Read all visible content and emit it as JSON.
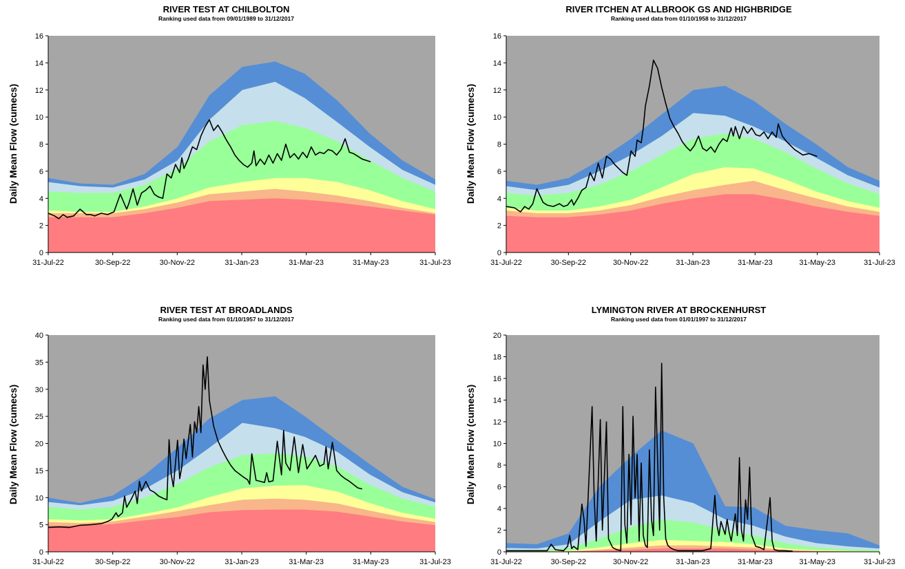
{
  "colors": {
    "background": "#a6a6a6",
    "band_1": "#ff7c80",
    "band_2": "#f8b68a",
    "band_3": "#ffff99",
    "band_4": "#99ff99",
    "band_5": "#c5e0ec",
    "band_6": "#558ed5",
    "flow_line": "#000000"
  },
  "chart_data": [
    {
      "type": "area",
      "title": "RIVER TEST AT CHILBOLTON",
      "subtitle": "Ranking used data from 09/01/1989 to 31/12/2017",
      "ylabel": "Daily Mean Flow (cumecs)",
      "xlabel": "",
      "x_ticks": [
        "31-Jul-22",
        "30-Sep-22",
        "30-Nov-22",
        "31-Jan-23",
        "31-Mar-23",
        "31-May-23",
        "31-Jul-23"
      ],
      "ylim": [
        0,
        16
      ],
      "y_ticks": [
        "0",
        "2",
        "4",
        "6",
        "8",
        "10",
        "12",
        "14",
        "16"
      ],
      "x": [
        0,
        30,
        61,
        91,
        122,
        152,
        183,
        214,
        242,
        273,
        303,
        334,
        365
      ],
      "bands": [
        [
          2.6,
          2.6,
          2.6,
          2.9,
          3.3,
          3.8,
          3.9,
          4.0,
          3.9,
          3.7,
          3.4,
          3.1,
          2.8
        ],
        [
          2.9,
          2.9,
          2.9,
          3.2,
          3.7,
          4.3,
          4.5,
          4.7,
          4.5,
          4.2,
          3.8,
          3.3,
          2.9
        ],
        [
          3.1,
          3.0,
          3.0,
          3.4,
          4.0,
          4.8,
          5.2,
          5.5,
          5.5,
          5.2,
          4.6,
          3.8,
          3.2
        ],
        [
          4.5,
          4.4,
          4.4,
          5.0,
          6.2,
          8.2,
          9.4,
          9.7,
          9.2,
          8.2,
          6.8,
          5.5,
          4.5
        ],
        [
          5.2,
          4.9,
          4.8,
          5.4,
          6.8,
          9.8,
          12.0,
          12.6,
          11.4,
          9.6,
          7.8,
          6.1,
          5.0
        ],
        [
          5.5,
          5.1,
          5.0,
          5.8,
          7.8,
          11.6,
          13.7,
          14.1,
          13.2,
          11.2,
          8.8,
          6.8,
          5.4
        ]
      ],
      "flow": {
        "x": [
          0,
          6,
          10,
          14,
          18,
          24,
          30,
          36,
          40,
          44,
          50,
          56,
          62,
          68,
          74,
          76,
          80,
          84,
          88,
          92,
          96,
          100,
          104,
          108,
          112,
          116,
          120,
          124,
          126,
          128,
          132,
          136,
          140,
          144,
          148,
          152,
          156,
          160,
          164,
          168,
          172,
          176,
          180,
          184,
          188,
          192,
          194,
          196,
          200,
          204,
          208,
          212,
          216,
          220,
          224,
          228,
          232,
          236,
          240,
          244,
          248,
          252,
          256,
          260,
          264,
          268,
          272,
          276,
          280,
          284,
          288,
          292,
          296,
          300,
          304
        ],
        "y": [
          2.9,
          2.7,
          2.5,
          2.8,
          2.6,
          2.7,
          3.2,
          2.8,
          2.8,
          2.7,
          2.9,
          2.8,
          3.0,
          4.3,
          3.2,
          3.6,
          4.7,
          3.5,
          4.4,
          4.6,
          4.9,
          4.3,
          4.1,
          4.0,
          5.8,
          5.5,
          6.5,
          5.9,
          7.0,
          6.2,
          6.9,
          7.8,
          7.6,
          8.6,
          9.3,
          9.8,
          9.0,
          9.4,
          8.9,
          8.3,
          7.8,
          7.2,
          6.8,
          6.5,
          6.3,
          6.6,
          7.5,
          6.4,
          6.9,
          6.5,
          7.2,
          6.6,
          7.3,
          6.8,
          8.0,
          7.0,
          7.3,
          6.9,
          7.4,
          7.0,
          7.8,
          7.2,
          7.4,
          7.3,
          7.6,
          7.5,
          7.2,
          7.6,
          8.4,
          7.4,
          7.3,
          7.1,
          6.9,
          6.8,
          6.7
        ]
      }
    },
    {
      "type": "area",
      "title": "RIVER ITCHEN AT ALLBROOK GS AND HIGHBRIDGE",
      "subtitle": "Ranking used data from 01/10/1958 to 31/12/2017",
      "ylabel": "Daily Mean Flow (cumecs)",
      "xlabel": "",
      "x_ticks": [
        "31-Jul-22",
        "30-Sep-22",
        "30-Nov-22",
        "31-Jan-23",
        "31-Mar-23",
        "31-May-23",
        "31-Jul-23"
      ],
      "ylim": [
        0,
        16
      ],
      "y_ticks": [
        "0",
        "2",
        "4",
        "6",
        "8",
        "10",
        "12",
        "14",
        "16"
      ],
      "x": [
        0,
        30,
        61,
        91,
        122,
        152,
        183,
        214,
        242,
        273,
        303,
        334,
        365
      ],
      "bands": [
        [
          2.7,
          2.6,
          2.6,
          2.8,
          3.1,
          3.6,
          4.0,
          4.3,
          4.3,
          3.9,
          3.4,
          3.0,
          2.7
        ],
        [
          3.1,
          2.9,
          2.9,
          3.1,
          3.5,
          4.1,
          4.6,
          5.0,
          5.3,
          4.6,
          4.0,
          3.4,
          3.0
        ],
        [
          3.3,
          3.1,
          3.1,
          3.4,
          3.9,
          4.8,
          5.8,
          6.3,
          6.2,
          5.4,
          4.5,
          3.8,
          3.3
        ],
        [
          4.4,
          4.2,
          4.4,
          5.0,
          6.0,
          7.2,
          8.4,
          8.8,
          8.4,
          7.4,
          6.2,
          5.1,
          4.3
        ],
        [
          4.9,
          4.6,
          5.0,
          6.0,
          7.2,
          8.6,
          10.3,
          10.1,
          9.3,
          8.2,
          7.0,
          5.7,
          4.8
        ],
        [
          5.3,
          5.0,
          5.5,
          6.8,
          8.4,
          10.2,
          12.0,
          12.3,
          11.2,
          9.5,
          8.0,
          6.3,
          5.3
        ]
      ],
      "flow": {
        "x": [
          0,
          8,
          14,
          18,
          22,
          26,
          30,
          36,
          40,
          46,
          52,
          56,
          60,
          64,
          66,
          70,
          74,
          78,
          82,
          86,
          90,
          94,
          98,
          102,
          106,
          110,
          114,
          118,
          122,
          126,
          128,
          132,
          134,
          136,
          140,
          144,
          148,
          152,
          156,
          160,
          164,
          168,
          172,
          176,
          180,
          184,
          188,
          192,
          196,
          200,
          204,
          208,
          212,
          216,
          220,
          222,
          224,
          228,
          232,
          236,
          240,
          244,
          248,
          252,
          256,
          260,
          264,
          266,
          270,
          274,
          278,
          282,
          286,
          290,
          296,
          300,
          304
        ],
        "y": [
          3.4,
          3.3,
          3.0,
          3.4,
          3.2,
          3.6,
          4.7,
          3.7,
          3.5,
          3.4,
          3.6,
          3.4,
          3.5,
          3.9,
          3.5,
          4.0,
          4.6,
          4.8,
          5.9,
          5.3,
          6.6,
          5.5,
          7.1,
          6.9,
          6.5,
          6.2,
          5.9,
          5.7,
          7.5,
          7.1,
          8.3,
          8.1,
          9.2,
          10.8,
          12.3,
          14.2,
          13.6,
          12.2,
          11.0,
          9.9,
          9.3,
          8.8,
          8.2,
          7.8,
          7.5,
          7.9,
          8.6,
          7.7,
          7.5,
          7.8,
          7.4,
          8.0,
          8.4,
          8.2,
          9.2,
          8.6,
          9.3,
          8.4,
          9.3,
          8.8,
          9.2,
          8.7,
          8.6,
          8.9,
          8.4,
          8.9,
          8.5,
          9.5,
          8.6,
          8.2,
          7.9,
          7.6,
          7.4,
          7.2,
          7.3,
          7.2,
          7.1
        ]
      }
    },
    {
      "type": "area",
      "title": "RIVER TEST AT BROADLANDS",
      "subtitle": "Ranking used data from 01/10/1957 to 31/12/2017",
      "ylabel": "Daily Mean Flow (cumecs)",
      "xlabel": "",
      "x_ticks": [
        "31-Jul-22",
        "30-Sep-22",
        "30-Nov-22",
        "31-Jan-23",
        "31-Mar-23",
        "31-May-23",
        "31-Jul-23"
      ],
      "ylim": [
        0,
        40
      ],
      "y_ticks": [
        "0",
        "5",
        "10",
        "15",
        "20",
        "25",
        "30",
        "35",
        "40"
      ],
      "x": [
        0,
        30,
        61,
        91,
        122,
        152,
        183,
        214,
        242,
        273,
        303,
        334,
        365
      ],
      "bands": [
        [
          4.8,
          4.8,
          5.1,
          5.8,
          6.4,
          7.3,
          7.7,
          7.8,
          7.8,
          7.4,
          6.5,
          5.6,
          4.9
        ],
        [
          5.5,
          5.3,
          5.6,
          6.5,
          7.5,
          8.6,
          9.6,
          9.8,
          9.6,
          8.9,
          7.6,
          6.4,
          5.5
        ],
        [
          6.0,
          5.8,
          6.0,
          7.0,
          8.2,
          10.1,
          11.7,
          12.2,
          12.3,
          11.1,
          9.0,
          7.2,
          6.1
        ],
        [
          8.3,
          7.8,
          8.3,
          10.0,
          12.5,
          15.6,
          17.8,
          18.2,
          17.6,
          15.7,
          12.4,
          9.8,
          8.3
        ],
        [
          9.2,
          8.6,
          9.4,
          11.6,
          15.0,
          19.2,
          23.8,
          22.8,
          21.2,
          18.4,
          14.3,
          11.0,
          9.1
        ],
        [
          10.0,
          9.0,
          10.4,
          14.2,
          19.2,
          24.6,
          28.0,
          28.7,
          25.0,
          20.5,
          16.2,
          12.0,
          9.7
        ]
      ],
      "flow": {
        "x": [
          0,
          10,
          20,
          30,
          40,
          50,
          56,
          60,
          64,
          66,
          70,
          72,
          74,
          78,
          82,
          84,
          86,
          88,
          92,
          96,
          100,
          104,
          108,
          112,
          114,
          116,
          118,
          122,
          124,
          126,
          128,
          130,
          134,
          136,
          138,
          140,
          142,
          144,
          146,
          148,
          150,
          152,
          156,
          160,
          164,
          168,
          172,
          176,
          180,
          184,
          188,
          190,
          192,
          196,
          200,
          204,
          206,
          208,
          212,
          216,
          220,
          222,
          224,
          228,
          232,
          236,
          240,
          244,
          248,
          252,
          256,
          260,
          262,
          264,
          268,
          272,
          276,
          280,
          284,
          288,
          292,
          296
        ],
        "y": [
          4.5,
          4.6,
          4.5,
          4.9,
          5.0,
          5.2,
          5.6,
          6.0,
          7.2,
          6.5,
          7.2,
          10.3,
          8.2,
          9.6,
          11.2,
          8.9,
          13.0,
          11.2,
          13.0,
          11.4,
          11.0,
          10.3,
          9.9,
          9.6,
          20.7,
          14.3,
          12.0,
          20.6,
          13.5,
          15.7,
          20.8,
          17.2,
          23.5,
          17.5,
          24.0,
          22.0,
          26.8,
          22.0,
          34.5,
          30.0,
          36.0,
          28.0,
          23.2,
          20.5,
          18.8,
          17.3,
          16.0,
          15.0,
          14.4,
          13.8,
          13.3,
          12.5,
          18.1,
          13.2,
          13.0,
          12.8,
          14.6,
          12.9,
          13.1,
          20.4,
          14.2,
          22.4,
          16.4,
          15.0,
          21.2,
          14.6,
          19.8,
          15.3,
          16.5,
          17.8,
          15.8,
          16.2,
          19.4,
          15.3,
          20.2,
          15.0,
          14.1,
          13.5,
          13.0,
          12.4,
          11.8,
          11.6
        ]
      }
    },
    {
      "type": "area",
      "title": "LYMINGTON RIVER AT BROCKENHURST",
      "subtitle": "Ranking used data from 01/01/1997 to 31/12/2017",
      "ylabel": "Daily Mean Flow (cumecs)",
      "xlabel": "",
      "x_ticks": [
        "31-Jul-22",
        "30-Sep-22",
        "30-Nov-22",
        "31-Jan-23",
        "31-Mar-23",
        "31-May-23",
        "31-Jul-23"
      ],
      "ylim": [
        0,
        20
      ],
      "y_ticks": [
        "0",
        "2",
        "4",
        "6",
        "8",
        "10",
        "12",
        "14",
        "16",
        "18",
        "20"
      ],
      "x": [
        0,
        30,
        61,
        91,
        122,
        152,
        183,
        214,
        242,
        273,
        303,
        334,
        365
      ],
      "bands": [
        [
          0.02,
          0.02,
          0.03,
          0.1,
          0.2,
          0.3,
          0.3,
          0.3,
          0.2,
          0.1,
          0.05,
          0.03,
          0.02
        ],
        [
          0.03,
          0.03,
          0.05,
          0.2,
          0.4,
          0.6,
          0.6,
          0.5,
          0.4,
          0.2,
          0.08,
          0.05,
          0.03
        ],
        [
          0.05,
          0.05,
          0.1,
          0.4,
          0.8,
          1.1,
          1.0,
          0.9,
          0.7,
          0.3,
          0.15,
          0.08,
          0.05
        ],
        [
          0.15,
          0.15,
          0.3,
          1.2,
          2.3,
          3.0,
          2.7,
          2.0,
          1.5,
          0.8,
          0.4,
          0.25,
          0.15
        ],
        [
          0.35,
          0.3,
          0.7,
          2.8,
          4.8,
          5.2,
          4.5,
          3.0,
          2.4,
          1.4,
          0.8,
          0.5,
          0.3
        ],
        [
          0.8,
          0.7,
          1.7,
          6.0,
          8.8,
          11.2,
          10.0,
          4.2,
          4.1,
          2.4,
          2.0,
          1.7,
          0.6
        ]
      ],
      "flow": {
        "x": [
          0,
          20,
          40,
          44,
          48,
          56,
          60,
          62,
          64,
          66,
          70,
          74,
          76,
          78,
          84,
          86,
          88,
          92,
          94,
          98,
          100,
          104,
          108,
          112,
          114,
          116,
          118,
          120,
          122,
          124,
          126,
          128,
          130,
          132,
          134,
          136,
          138,
          140,
          142,
          144,
          146,
          150,
          152,
          154,
          156,
          158,
          160,
          164,
          168,
          176,
          184,
          192,
          200,
          204,
          206,
          208,
          210,
          214,
          216,
          218,
          220,
          224,
          226,
          228,
          230,
          232,
          234,
          236,
          238,
          240,
          242,
          244,
          248,
          252,
          256,
          258,
          260,
          262,
          266,
          272,
          280
        ],
        "y": [
          0.1,
          0.1,
          0.1,
          0.7,
          0.2,
          0.1,
          0.5,
          1.5,
          0.3,
          0.5,
          0.2,
          4.4,
          3.0,
          0.5,
          13.4,
          5.0,
          1.0,
          12.2,
          2.0,
          12.0,
          1.2,
          0.4,
          0.2,
          0.1,
          13.4,
          2.5,
          0.8,
          9.0,
          2.5,
          12.5,
          5.0,
          9.0,
          1.0,
          8.2,
          1.5,
          0.6,
          0.4,
          9.4,
          3.0,
          1.5,
          15.2,
          2.0,
          17.4,
          5.0,
          1.2,
          0.6,
          0.4,
          0.2,
          0.1,
          0.1,
          0.1,
          0.1,
          0.3,
          5.2,
          2.5,
          1.5,
          2.8,
          1.6,
          3.0,
          1.8,
          1.0,
          3.5,
          1.5,
          8.7,
          2.0,
          1.0,
          4.8,
          3.0,
          7.8,
          1.5,
          1.0,
          0.5,
          0.4,
          0.2,
          3.3,
          5.0,
          1.0,
          0.2,
          0.1,
          0.1,
          0.05
        ]
      }
    }
  ]
}
